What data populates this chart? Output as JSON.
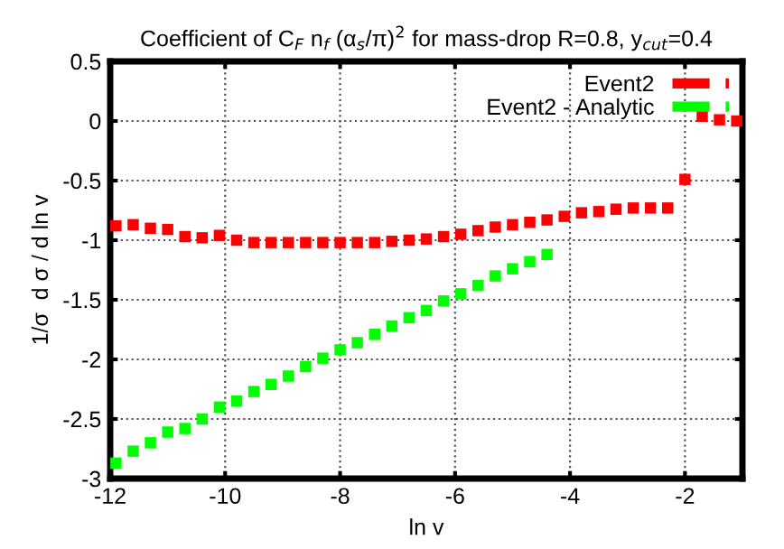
{
  "chart_data": {
    "type": "scatter",
    "title": "Coefficient of C$_{F}$ n$_{f}$ (α$_{s}$/π)$^{2}$ for mass-drop R=0.8, y$_{cut}$=0.4",
    "xlabel": "ln v",
    "ylabel": "1/σ  d σ / d ln v",
    "series": [
      {
        "name": "Event2",
        "color": "#ff0000",
        "x": [
          -11.9,
          -11.6,
          -11.3,
          -11.0,
          -10.7,
          -10.4,
          -10.1,
          -9.8,
          -9.5,
          -9.2,
          -8.9,
          -8.6,
          -8.3,
          -8.0,
          -7.7,
          -7.4,
          -7.1,
          -6.8,
          -6.5,
          -6.2,
          -5.9,
          -5.6,
          -5.3,
          -5.0,
          -4.7,
          -4.4,
          -4.1,
          -3.8,
          -3.5,
          -3.2,
          -2.9,
          -2.6,
          -2.3,
          -2.0,
          -1.7,
          -1.4,
          -1.1
        ],
        "values": [
          -0.88,
          -0.87,
          -0.9,
          -0.91,
          -0.97,
          -0.98,
          -0.96,
          -1.0,
          -1.02,
          -1.02,
          -1.02,
          -1.02,
          -1.02,
          -1.02,
          -1.02,
          -1.02,
          -1.01,
          -1.0,
          -0.99,
          -0.97,
          -0.95,
          -0.92,
          -0.89,
          -0.87,
          -0.85,
          -0.83,
          -0.8,
          -0.77,
          -0.76,
          -0.74,
          -0.73,
          -0.73,
          -0.73,
          -0.49,
          0.04,
          0.01,
          0.0
        ]
      },
      {
        "name": "Event2 - Analytic",
        "color": "#00ff00",
        "x": [
          -11.9,
          -11.6,
          -11.3,
          -11.0,
          -10.7,
          -10.4,
          -10.1,
          -9.8,
          -9.5,
          -9.2,
          -8.9,
          -8.6,
          -8.3,
          -8.0,
          -7.7,
          -7.4,
          -7.1,
          -6.8,
          -6.5,
          -6.2,
          -5.9,
          -5.6,
          -5.3,
          -5.0,
          -4.7,
          -4.4
        ],
        "values": [
          -2.87,
          -2.77,
          -2.7,
          -2.61,
          -2.58,
          -2.5,
          -2.4,
          -2.35,
          -2.27,
          -2.21,
          -2.14,
          -2.06,
          -1.99,
          -1.92,
          -1.86,
          -1.79,
          -1.72,
          -1.65,
          -1.59,
          -1.51,
          -1.45,
          -1.38,
          -1.3,
          -1.24,
          -1.18,
          -1.12
        ]
      }
    ],
    "xlim": [
      -12,
      -1
    ],
    "xticks": [
      -12,
      -10,
      -8,
      -6,
      -4,
      -2
    ],
    "ylim": [
      -3,
      0.5
    ],
    "yticks": [
      -3,
      -2.5,
      -2,
      -1.5,
      -1,
      -0.5,
      0,
      0.5
    ],
    "grid": true,
    "legend": "top right",
    "marker": "square"
  }
}
